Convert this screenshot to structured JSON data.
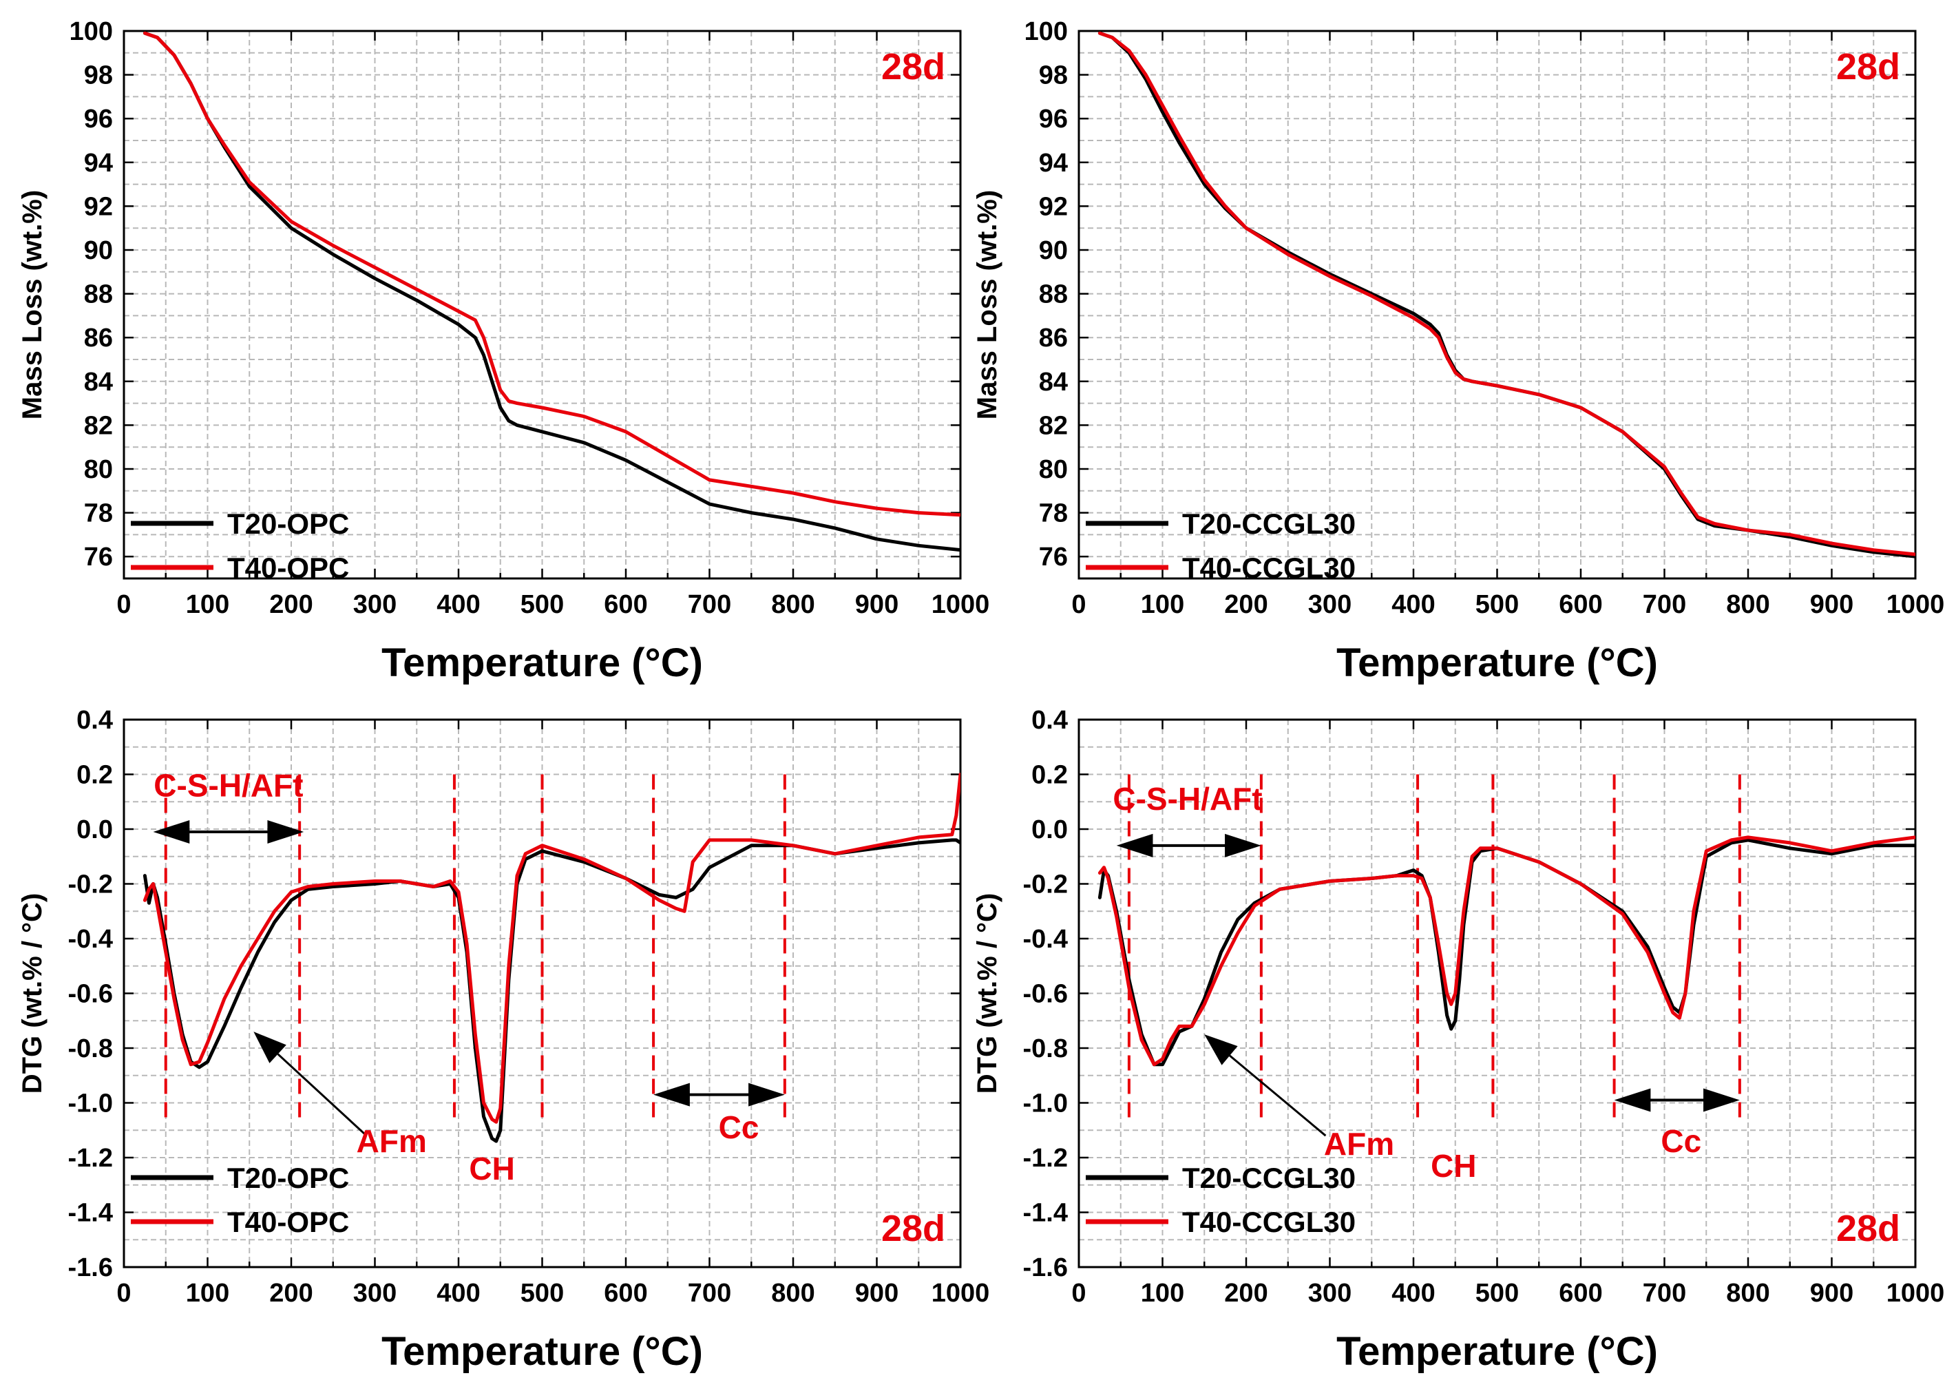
{
  "figure": {
    "background": "#ffffff"
  },
  "chart_data": [
    {
      "id": "tga-opc",
      "type": "line",
      "xlabel": "Temperature (°C)",
      "ylabel": "Mass Loss (wt.%)",
      "xlim": [
        0,
        1000
      ],
      "ylim": [
        75,
        100
      ],
      "xticks": [
        0,
        100,
        200,
        300,
        400,
        500,
        600,
        700,
        800,
        900,
        1000
      ],
      "yticks": [
        76,
        78,
        80,
        82,
        84,
        86,
        88,
        90,
        92,
        94,
        96,
        98,
        100
      ],
      "grid": true,
      "badge": {
        "text": "28d",
        "position": "top-right",
        "color": "#e8000b"
      },
      "legend": {
        "position": "bottom-left"
      },
      "series": [
        {
          "name": "T20-OPC",
          "color": "#000000",
          "x": [
            25,
            40,
            60,
            80,
            100,
            120,
            150,
            200,
            250,
            300,
            350,
            400,
            420,
            430,
            440,
            450,
            460,
            470,
            500,
            550,
            600,
            650,
            700,
            750,
            800,
            850,
            900,
            950,
            1000
          ],
          "y": [
            99.9,
            99.7,
            98.9,
            97.6,
            96.0,
            94.7,
            92.9,
            91.0,
            89.8,
            88.7,
            87.7,
            86.6,
            86.0,
            85.2,
            84.0,
            82.8,
            82.2,
            82.0,
            81.7,
            81.2,
            80.4,
            79.4,
            78.4,
            78.0,
            77.7,
            77.3,
            76.8,
            76.5,
            76.3
          ]
        },
        {
          "name": "T40-OPC",
          "color": "#e8000b",
          "x": [
            25,
            40,
            60,
            80,
            100,
            120,
            150,
            200,
            250,
            300,
            350,
            400,
            420,
            430,
            440,
            450,
            460,
            470,
            500,
            550,
            600,
            650,
            700,
            750,
            800,
            850,
            900,
            950,
            1000
          ],
          "y": [
            99.9,
            99.7,
            98.9,
            97.6,
            96.0,
            94.8,
            93.1,
            91.3,
            90.2,
            89.2,
            88.2,
            87.2,
            86.8,
            86.0,
            84.8,
            83.6,
            83.1,
            83.0,
            82.8,
            82.4,
            81.7,
            80.6,
            79.5,
            79.2,
            78.9,
            78.5,
            78.2,
            78.0,
            77.9
          ]
        }
      ]
    },
    {
      "id": "tga-ccgl30",
      "type": "line",
      "xlabel": "Temperature (°C)",
      "ylabel": "Mass Loss (wt.%)",
      "xlim": [
        0,
        1000
      ],
      "ylim": [
        75,
        100
      ],
      "xticks": [
        0,
        100,
        200,
        300,
        400,
        500,
        600,
        700,
        800,
        900,
        1000
      ],
      "yticks": [
        76,
        78,
        80,
        82,
        84,
        86,
        88,
        90,
        92,
        94,
        96,
        98,
        100
      ],
      "grid": true,
      "badge": {
        "text": "28d",
        "position": "top-right",
        "color": "#e8000b"
      },
      "legend": {
        "position": "bottom-left"
      },
      "series": [
        {
          "name": "T20-CCGL30",
          "color": "#000000",
          "x": [
            25,
            40,
            60,
            80,
            100,
            120,
            150,
            175,
            200,
            250,
            300,
            350,
            400,
            420,
            430,
            440,
            450,
            460,
            470,
            500,
            550,
            600,
            650,
            700,
            720,
            740,
            760,
            800,
            850,
            900,
            950,
            1000
          ],
          "y": [
            99.9,
            99.7,
            99.0,
            97.8,
            96.3,
            94.9,
            93.0,
            91.9,
            91.0,
            89.9,
            88.9,
            88.0,
            87.1,
            86.6,
            86.2,
            85.2,
            84.5,
            84.1,
            84.0,
            83.8,
            83.4,
            82.8,
            81.7,
            80.0,
            78.8,
            77.7,
            77.4,
            77.2,
            76.9,
            76.5,
            76.2,
            76.0
          ]
        },
        {
          "name": "T40-CCGL30",
          "color": "#e8000b",
          "x": [
            25,
            40,
            60,
            80,
            100,
            120,
            150,
            175,
            200,
            250,
            300,
            350,
            400,
            420,
            430,
            440,
            450,
            460,
            470,
            500,
            550,
            600,
            650,
            700,
            720,
            740,
            760,
            800,
            850,
            900,
            950,
            1000
          ],
          "y": [
            99.9,
            99.7,
            99.1,
            98.0,
            96.6,
            95.2,
            93.2,
            92.0,
            91.0,
            89.8,
            88.8,
            87.9,
            86.9,
            86.4,
            86.0,
            85.1,
            84.4,
            84.1,
            84.0,
            83.8,
            83.4,
            82.8,
            81.7,
            80.1,
            78.9,
            77.8,
            77.5,
            77.2,
            77.0,
            76.6,
            76.3,
            76.1
          ]
        }
      ]
    },
    {
      "id": "dtg-opc",
      "type": "line",
      "xlabel": "Temperature (°C)",
      "ylabel": "DTG (wt.% / °C)",
      "xlim": [
        0,
        1000
      ],
      "ylim": [
        -1.6,
        0.4
      ],
      "xticks": [
        0,
        100,
        200,
        300,
        400,
        500,
        600,
        700,
        800,
        900,
        1000
      ],
      "yticks": [
        -1.6,
        -1.4,
        -1.2,
        -1.0,
        -0.8,
        -0.6,
        -0.4,
        -0.2,
        0.0,
        0.2,
        0.4
      ],
      "grid": true,
      "badge": {
        "text": "28d",
        "position": "bottom-right",
        "color": "#e8000b"
      },
      "legend": {
        "position": "bottom-left"
      },
      "series": [
        {
          "name": "T20-OPC",
          "color": "#000000",
          "x": [
            25,
            30,
            35,
            40,
            50,
            60,
            70,
            80,
            90,
            100,
            120,
            140,
            160,
            180,
            200,
            220,
            250,
            300,
            330,
            350,
            370,
            390,
            400,
            410,
            420,
            430,
            440,
            445,
            450,
            460,
            470,
            480,
            500,
            550,
            600,
            640,
            660,
            680,
            700,
            750,
            800,
            850,
            900,
            950,
            990,
            995,
            1000
          ],
          "y": [
            -0.17,
            -0.27,
            -0.2,
            -0.25,
            -0.42,
            -0.6,
            -0.75,
            -0.85,
            -0.87,
            -0.85,
            -0.72,
            -0.58,
            -0.45,
            -0.34,
            -0.26,
            -0.22,
            -0.21,
            -0.2,
            -0.19,
            -0.2,
            -0.21,
            -0.2,
            -0.25,
            -0.45,
            -0.8,
            -1.05,
            -1.13,
            -1.14,
            -1.1,
            -0.55,
            -0.2,
            -0.11,
            -0.08,
            -0.12,
            -0.18,
            -0.24,
            -0.25,
            -0.22,
            -0.14,
            -0.06,
            -0.06,
            -0.09,
            -0.07,
            -0.05,
            -0.04,
            -0.04,
            -0.05
          ]
        },
        {
          "name": "T40-OPC",
          "color": "#e8000b",
          "x": [
            25,
            30,
            35,
            40,
            50,
            60,
            70,
            80,
            90,
            100,
            120,
            140,
            160,
            180,
            200,
            220,
            250,
            300,
            330,
            350,
            370,
            390,
            400,
            410,
            420,
            430,
            440,
            445,
            450,
            460,
            470,
            480,
            500,
            550,
            600,
            640,
            660,
            670,
            680,
            700,
            750,
            800,
            850,
            900,
            950,
            990,
            995,
            1000
          ],
          "y": [
            -0.26,
            -0.22,
            -0.2,
            -0.28,
            -0.45,
            -0.62,
            -0.77,
            -0.86,
            -0.85,
            -0.78,
            -0.62,
            -0.5,
            -0.4,
            -0.3,
            -0.23,
            -0.21,
            -0.2,
            -0.19,
            -0.19,
            -0.2,
            -0.21,
            -0.19,
            -0.23,
            -0.42,
            -0.75,
            -1.0,
            -1.06,
            -1.07,
            -1.02,
            -0.5,
            -0.17,
            -0.09,
            -0.06,
            -0.11,
            -0.18,
            -0.26,
            -0.29,
            -0.3,
            -0.12,
            -0.04,
            -0.04,
            -0.06,
            -0.09,
            -0.06,
            -0.03,
            -0.02,
            0.05,
            0.2
          ]
        }
      ]
    },
    {
      "id": "dtg-ccgl30",
      "type": "line",
      "xlabel": "Temperature (°C)",
      "ylabel": "DTG (wt.% / °C)",
      "xlim": [
        0,
        1000
      ],
      "ylim": [
        -1.6,
        0.4
      ],
      "xticks": [
        0,
        100,
        200,
        300,
        400,
        500,
        600,
        700,
        800,
        900,
        1000
      ],
      "yticks": [
        -1.6,
        -1.4,
        -1.2,
        -1.0,
        -0.8,
        -0.6,
        -0.4,
        -0.2,
        0.0,
        0.2,
        0.4
      ],
      "grid": true,
      "badge": {
        "text": "28d",
        "position": "bottom-right",
        "color": "#e8000b"
      },
      "legend": {
        "position": "bottom-left"
      },
      "series": [
        {
          "name": "T20-CCGL30",
          "color": "#000000",
          "x": [
            25,
            30,
            35,
            45,
            60,
            75,
            90,
            100,
            110,
            120,
            135,
            150,
            170,
            190,
            210,
            240,
            300,
            350,
            380,
            400,
            410,
            420,
            430,
            440,
            445,
            450,
            455,
            460,
            470,
            480,
            500,
            550,
            600,
            650,
            680,
            700,
            710,
            718,
            725,
            735,
            750,
            780,
            800,
            850,
            900,
            950,
            1000
          ],
          "y": [
            -0.25,
            -0.15,
            -0.17,
            -0.3,
            -0.55,
            -0.75,
            -0.86,
            -0.86,
            -0.8,
            -0.74,
            -0.72,
            -0.62,
            -0.45,
            -0.33,
            -0.27,
            -0.22,
            -0.19,
            -0.18,
            -0.17,
            -0.15,
            -0.17,
            -0.25,
            -0.45,
            -0.68,
            -0.73,
            -0.7,
            -0.55,
            -0.35,
            -0.12,
            -0.08,
            -0.07,
            -0.12,
            -0.2,
            -0.3,
            -0.43,
            -0.58,
            -0.65,
            -0.67,
            -0.6,
            -0.35,
            -0.1,
            -0.05,
            -0.04,
            -0.07,
            -0.09,
            -0.06,
            -0.06
          ]
        },
        {
          "name": "T40-CCGL30",
          "color": "#e8000b",
          "x": [
            25,
            30,
            35,
            45,
            60,
            75,
            90,
            100,
            110,
            120,
            135,
            150,
            170,
            190,
            210,
            240,
            300,
            350,
            380,
            400,
            410,
            420,
            430,
            440,
            445,
            450,
            455,
            460,
            470,
            480,
            500,
            550,
            600,
            650,
            680,
            700,
            710,
            718,
            725,
            735,
            750,
            780,
            800,
            850,
            900,
            950,
            1000
          ],
          "y": [
            -0.16,
            -0.14,
            -0.18,
            -0.32,
            -0.58,
            -0.77,
            -0.86,
            -0.84,
            -0.77,
            -0.72,
            -0.72,
            -0.64,
            -0.5,
            -0.38,
            -0.28,
            -0.22,
            -0.19,
            -0.18,
            -0.17,
            -0.17,
            -0.18,
            -0.25,
            -0.42,
            -0.6,
            -0.64,
            -0.6,
            -0.45,
            -0.3,
            -0.1,
            -0.07,
            -0.07,
            -0.12,
            -0.2,
            -0.31,
            -0.45,
            -0.6,
            -0.67,
            -0.69,
            -0.6,
            -0.3,
            -0.08,
            -0.04,
            -0.03,
            -0.05,
            -0.08,
            -0.05,
            -0.03
          ]
        }
      ]
    }
  ],
  "annotations": [
    {
      "panel": "dtg-opc",
      "color": "#e8000b",
      "dashed_lines": [
        50,
        210,
        395,
        500,
        633,
        790
      ],
      "labels": [
        {
          "text": "C-S-H/AFt",
          "x": 125,
          "y": 0.12,
          "anchor": "middle"
        },
        {
          "text": "AFm",
          "x": 320,
          "y": -1.18,
          "anchor": "middle"
        },
        {
          "text": "CH",
          "x": 440,
          "y": -1.28,
          "anchor": "middle"
        },
        {
          "text": "Cc",
          "x": 735,
          "y": -1.13,
          "anchor": "middle"
        }
      ],
      "double_arrows": [
        {
          "x1": 35,
          "x2": 215,
          "y": -0.01
        },
        {
          "x1": 633,
          "x2": 790,
          "y": -0.97
        }
      ],
      "pointer_arrow": {
        "from": [
          290,
          -1.12
        ],
        "to": [
          155,
          -0.74
        ]
      }
    },
    {
      "panel": "dtg-ccgl30",
      "color": "#e8000b",
      "dashed_lines": [
        60,
        218,
        405,
        495,
        640,
        790
      ],
      "labels": [
        {
          "text": "C-S-H/AFt",
          "x": 130,
          "y": 0.07,
          "anchor": "middle"
        },
        {
          "text": "AFm",
          "x": 335,
          "y": -1.19,
          "anchor": "middle"
        },
        {
          "text": "CH",
          "x": 448,
          "y": -1.27,
          "anchor": "middle"
        },
        {
          "text": "Cc",
          "x": 720,
          "y": -1.18,
          "anchor": "middle"
        }
      ],
      "double_arrows": [
        {
          "x1": 45,
          "x2": 218,
          "y": -0.06
        },
        {
          "x1": 640,
          "x2": 790,
          "y": -0.99
        }
      ],
      "pointer_arrow": {
        "from": [
          295,
          -1.12
        ],
        "to": [
          150,
          -0.75
        ]
      }
    }
  ]
}
